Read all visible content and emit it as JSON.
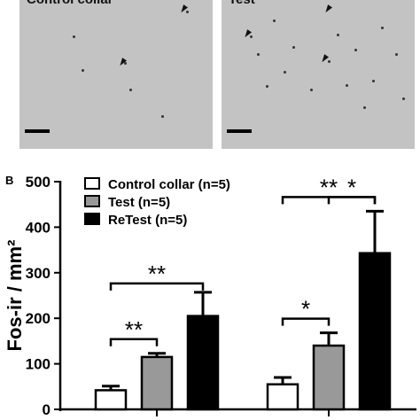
{
  "panel_a": {
    "left_title": "Control collar",
    "right_title": "Test"
  },
  "panel_b": {
    "label": "B"
  },
  "chart_data": {
    "type": "bar",
    "ylabel": "Fos-ir / mm²",
    "ylim": [
      0,
      500
    ],
    "yticks": [
      "0",
      "100",
      "200",
      "300",
      "400",
      "500"
    ],
    "groups": 2,
    "series": [
      {
        "name": "Control collar (n=5)",
        "color": "#ffffff",
        "values": [
          42,
          55
        ],
        "errors": [
          9,
          15
        ]
      },
      {
        "name": "Test (n=5)",
        "color": "#999999",
        "values": [
          115,
          140
        ],
        "errors": [
          8,
          28
        ]
      },
      {
        "name": "ReTest (n=5)",
        "color": "#000000",
        "values": [
          205,
          343
        ],
        "errors": [
          52,
          92
        ]
      }
    ],
    "significance": [
      {
        "group": 0,
        "from": 0,
        "to": 1,
        "label": "**"
      },
      {
        "group": 0,
        "from": 0,
        "to": 2,
        "label": "**"
      },
      {
        "group": 1,
        "from": 0,
        "to": 1,
        "label": "*"
      },
      {
        "group": 1,
        "from": 1,
        "to": 2,
        "label": "*"
      },
      {
        "group": 1,
        "from": 0,
        "to": 2,
        "label": "**"
      }
    ],
    "legend_position": "top-left"
  }
}
